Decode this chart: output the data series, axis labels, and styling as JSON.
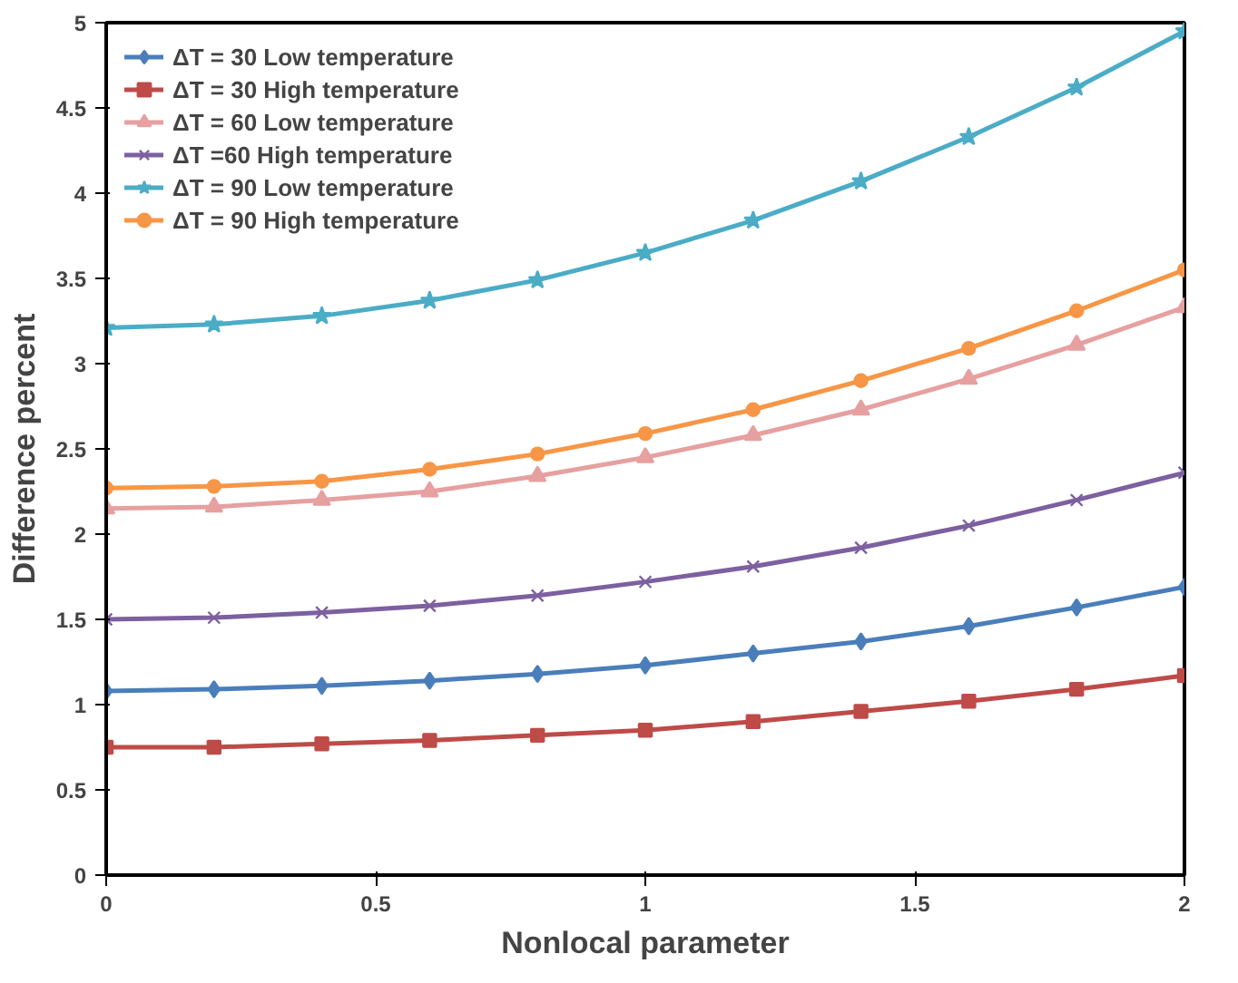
{
  "chart_data": {
    "type": "line",
    "xlabel": "Nonlocal parameter",
    "ylabel": "Difference percent",
    "x": [
      0,
      0.2,
      0.4,
      0.6,
      0.8,
      1,
      1.2,
      1.4,
      1.6,
      1.8,
      2
    ],
    "xlim": [
      0,
      2
    ],
    "xticks": [
      0,
      0.5,
      1,
      1.5,
      2
    ],
    "ylim": [
      0,
      5
    ],
    "yticks": [
      0,
      0.5,
      1,
      1.5,
      2,
      2.5,
      3,
      3.5,
      4,
      4.5,
      5
    ],
    "grid": false,
    "legend": "top left",
    "line_style": "solid",
    "series": [
      {
        "name": "ΔT = 30 Low temperature",
        "color": "#4a7ebb",
        "marker": "diamond",
        "values": [
          1.08,
          1.09,
          1.11,
          1.14,
          1.18,
          1.23,
          1.3,
          1.37,
          1.46,
          1.57,
          1.69
        ]
      },
      {
        "name": "ΔT = 30 High temperature",
        "color": "#be4b48",
        "marker": "square",
        "values": [
          0.75,
          0.75,
          0.77,
          0.79,
          0.82,
          0.85,
          0.9,
          0.96,
          1.02,
          1.09,
          1.17
        ]
      },
      {
        "name": "ΔT = 60 Low temperature",
        "color": "#e6a0a0",
        "marker": "triangle",
        "values": [
          2.15,
          2.16,
          2.2,
          2.25,
          2.34,
          2.45,
          2.58,
          2.73,
          2.91,
          3.11,
          3.33
        ]
      },
      {
        "name": "ΔT =60 High temperature",
        "color": "#7d60a0",
        "marker": "cross",
        "values": [
          1.5,
          1.51,
          1.54,
          1.58,
          1.64,
          1.72,
          1.81,
          1.92,
          2.05,
          2.2,
          2.36
        ]
      },
      {
        "name": "ΔT = 90 Low temperature",
        "color": "#4bacc6",
        "marker": "star",
        "values": [
          3.21,
          3.23,
          3.28,
          3.37,
          3.49,
          3.65,
          3.84,
          4.07,
          4.33,
          4.62,
          4.95
        ]
      },
      {
        "name": "ΔT = 90 High temperature",
        "color": "#f79646",
        "marker": "circle",
        "values": [
          2.27,
          2.28,
          2.31,
          2.38,
          2.47,
          2.59,
          2.73,
          2.9,
          3.09,
          3.31,
          3.55
        ]
      }
    ]
  }
}
